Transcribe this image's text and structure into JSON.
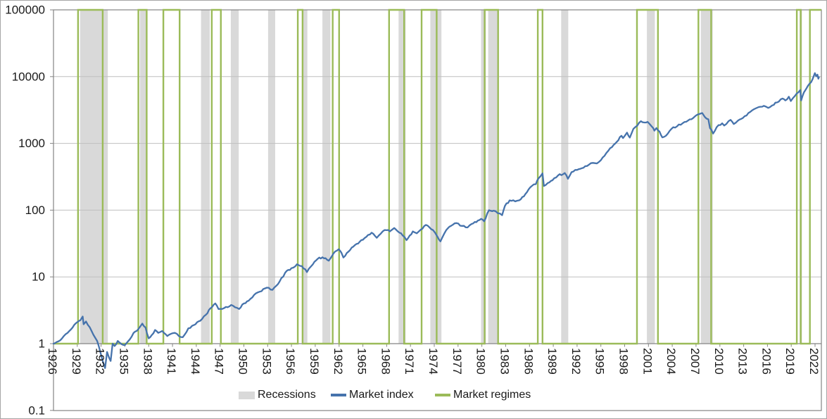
{
  "chart_data": {
    "type": "line",
    "title": "",
    "xlabel": "",
    "ylabel": "",
    "x_axis": {
      "tick_years": [
        1926,
        1929,
        1932,
        1935,
        1938,
        1941,
        1944,
        1947,
        1950,
        1953,
        1956,
        1959,
        1962,
        1965,
        1968,
        1971,
        1974,
        1977,
        1980,
        1983,
        1986,
        1989,
        1992,
        1995,
        1998,
        2001,
        2004,
        2007,
        2010,
        2013,
        2016,
        2019,
        2022
      ],
      "range": [
        1926,
        2022.8
      ],
      "label_rotation": 90
    },
    "y_axis": {
      "scale": "log",
      "tick_labels": [
        "100000",
        "10000",
        "1000",
        "100",
        "10",
        "1",
        "0.1"
      ],
      "tick_values": [
        100000,
        10000,
        1000,
        100,
        10,
        1,
        0.1
      ],
      "range": [
        0.1,
        100000
      ],
      "axis_cross_value": 1
    },
    "legend": [
      {
        "label": "Recessions",
        "swatch": "area",
        "color": "#D9D9D9"
      },
      {
        "label": "Market index",
        "swatch": "line",
        "color": "#4673AC"
      },
      {
        "label": "Market regimes",
        "swatch": "line",
        "color": "#9BBB59"
      }
    ],
    "recessions": {
      "color": "#D9D9D9",
      "periods": [
        [
          1929.35,
          1932.85
        ],
        [
          1936.9,
          1937.7
        ],
        [
          1944.6,
          1945.7
        ],
        [
          1948.35,
          1949.35
        ],
        [
          1953.05,
          1953.95
        ],
        [
          1957.4,
          1958.0
        ],
        [
          1959.9,
          1960.9
        ],
        [
          1969.5,
          1970.4
        ],
        [
          1973.5,
          1974.9
        ],
        [
          1979.9,
          1980.5
        ],
        [
          1980.8,
          1982.1
        ],
        [
          1990.0,
          1990.9
        ],
        [
          2000.8,
          2001.8
        ],
        [
          2007.6,
          2009.1
        ],
        [
          2020.05,
          2020.35
        ]
      ]
    },
    "regimes": {
      "color": "#9BBB59",
      "baseline_value": 1,
      "high_value": 100000,
      "periods": [
        [
          1929.1,
          1932.2
        ],
        [
          1936.7,
          1937.75
        ],
        [
          1939.85,
          1941.9
        ],
        [
          1945.95,
          1947.1
        ],
        [
          1956.8,
          1957.4
        ],
        [
          1961.2,
          1962.0
        ],
        [
          1968.3,
          1970.2
        ],
        [
          1972.4,
          1974.3
        ],
        [
          1980.35,
          1982.05
        ],
        [
          1987.05,
          1987.65
        ],
        [
          1999.55,
          2002.2
        ],
        [
          2007.3,
          2008.9
        ],
        [
          2019.7,
          2020.2
        ],
        [
          2021.35,
          null
        ]
      ]
    },
    "series": [
      {
        "name": "Market index",
        "color": "#4673AC",
        "points": [
          [
            1926.0,
            1.0
          ],
          [
            1926.6,
            1.08
          ],
          [
            1927.3,
            1.3
          ],
          [
            1928.0,
            1.55
          ],
          [
            1928.6,
            1.9
          ],
          [
            1929.0,
            2.1
          ],
          [
            1929.4,
            2.25
          ],
          [
            1929.68,
            2.55
          ],
          [
            1929.8,
            1.95
          ],
          [
            1930.1,
            2.15
          ],
          [
            1930.8,
            1.55
          ],
          [
            1931.5,
            1.1
          ],
          [
            1931.9,
            0.75
          ],
          [
            1932.2,
            0.55
          ],
          [
            1932.5,
            0.43
          ],
          [
            1932.75,
            0.75
          ],
          [
            1933.0,
            0.62
          ],
          [
            1933.2,
            0.55
          ],
          [
            1933.45,
            1.0
          ],
          [
            1933.7,
            0.92
          ],
          [
            1934.1,
            1.1
          ],
          [
            1934.6,
            0.98
          ],
          [
            1935.0,
            0.95
          ],
          [
            1935.6,
            1.15
          ],
          [
            1936.1,
            1.45
          ],
          [
            1936.7,
            1.65
          ],
          [
            1937.2,
            2.0
          ],
          [
            1937.6,
            1.75
          ],
          [
            1938.0,
            1.2
          ],
          [
            1938.4,
            1.35
          ],
          [
            1938.8,
            1.6
          ],
          [
            1939.2,
            1.45
          ],
          [
            1939.7,
            1.55
          ],
          [
            1940.35,
            1.3
          ],
          [
            1940.8,
            1.4
          ],
          [
            1941.3,
            1.45
          ],
          [
            1941.8,
            1.3
          ],
          [
            1942.3,
            1.25
          ],
          [
            1943.0,
            1.7
          ],
          [
            1943.7,
            1.9
          ],
          [
            1944.5,
            2.2
          ],
          [
            1945.2,
            2.7
          ],
          [
            1945.8,
            3.4
          ],
          [
            1946.4,
            4.0
          ],
          [
            1946.8,
            3.3
          ],
          [
            1947.5,
            3.4
          ],
          [
            1948.4,
            3.8
          ],
          [
            1948.9,
            3.5
          ],
          [
            1949.4,
            3.3
          ],
          [
            1950.0,
            4.0
          ],
          [
            1950.6,
            4.4
          ],
          [
            1951.3,
            5.4
          ],
          [
            1952.0,
            6.0
          ],
          [
            1952.9,
            6.9
          ],
          [
            1953.6,
            6.4
          ],
          [
            1954.5,
            8.5
          ],
          [
            1955.2,
            11.5
          ],
          [
            1956.0,
            13.5
          ],
          [
            1956.7,
            15.5
          ],
          [
            1957.3,
            14.5
          ],
          [
            1957.95,
            11.8
          ],
          [
            1958.7,
            15.5
          ],
          [
            1959.5,
            19.5
          ],
          [
            1960.1,
            19.0
          ],
          [
            1960.7,
            17.5
          ],
          [
            1961.3,
            22.5
          ],
          [
            1961.95,
            26.0
          ],
          [
            1962.3,
            23.0
          ],
          [
            1962.55,
            19.5
          ],
          [
            1963.2,
            24.0
          ],
          [
            1964.0,
            30.0
          ],
          [
            1965.0,
            36.0
          ],
          [
            1966.1,
            46.0
          ],
          [
            1966.75,
            38.5
          ],
          [
            1967.5,
            48.0
          ],
          [
            1968.0,
            50.0
          ],
          [
            1968.4,
            48.0
          ],
          [
            1968.95,
            54.0
          ],
          [
            1969.6,
            46.0
          ],
          [
            1970.0,
            42.0
          ],
          [
            1970.5,
            35.5
          ],
          [
            1971.3,
            48.0
          ],
          [
            1971.8,
            45.0
          ],
          [
            1972.3,
            51.0
          ],
          [
            1972.95,
            60.0
          ],
          [
            1973.6,
            52.0
          ],
          [
            1974.1,
            46.0
          ],
          [
            1974.4,
            40.0
          ],
          [
            1974.78,
            34.0
          ],
          [
            1975.5,
            50.0
          ],
          [
            1976.1,
            58.0
          ],
          [
            1976.8,
            64.0
          ],
          [
            1977.5,
            58.0
          ],
          [
            1978.2,
            55.0
          ],
          [
            1978.7,
            62.0
          ],
          [
            1979.3,
            66.0
          ],
          [
            1979.9,
            74.0
          ],
          [
            1980.28,
            68.0
          ],
          [
            1980.9,
            100.0
          ],
          [
            1981.5,
            98.0
          ],
          [
            1982.0,
            90.0
          ],
          [
            1982.55,
            84.0
          ],
          [
            1982.9,
            115.0
          ],
          [
            1983.5,
            140.0
          ],
          [
            1984.2,
            135.0
          ],
          [
            1984.7,
            140.0
          ],
          [
            1985.5,
            175.0
          ],
          [
            1986.3,
            230.0
          ],
          [
            1986.8,
            245.0
          ],
          [
            1987.15,
            300.0
          ],
          [
            1987.65,
            355.0
          ],
          [
            1987.82,
            230.0
          ],
          [
            1988.3,
            255.0
          ],
          [
            1988.9,
            280.0
          ],
          [
            1989.6,
            330.0
          ],
          [
            1990.45,
            360.0
          ],
          [
            1990.85,
            295.0
          ],
          [
            1991.3,
            370.0
          ],
          [
            1992.0,
            400.0
          ],
          [
            1992.8,
            430.0
          ],
          [
            1993.5,
            480.0
          ],
          [
            1994.0,
            510.0
          ],
          [
            1994.5,
            500.0
          ],
          [
            1995.0,
            560.0
          ],
          [
            1995.7,
            720.0
          ],
          [
            1996.4,
            880.0
          ],
          [
            1997.0,
            1050.0
          ],
          [
            1997.6,
            1300.0
          ],
          [
            1997.8,
            1200.0
          ],
          [
            1998.3,
            1450.0
          ],
          [
            1998.65,
            1220.0
          ],
          [
            1999.1,
            1650.0
          ],
          [
            1999.6,
            1850.0
          ],
          [
            2000.05,
            2150.0
          ],
          [
            2000.5,
            2050.0
          ],
          [
            2000.9,
            2100.0
          ],
          [
            2001.4,
            1800.0
          ],
          [
            2001.75,
            1550.0
          ],
          [
            2002.0,
            1700.0
          ],
          [
            2002.4,
            1500.0
          ],
          [
            2002.75,
            1230.0
          ],
          [
            2003.2,
            1300.0
          ],
          [
            2003.9,
            1650.0
          ],
          [
            2004.6,
            1800.0
          ],
          [
            2005.3,
            2000.0
          ],
          [
            2006.0,
            2200.0
          ],
          [
            2006.8,
            2500.0
          ],
          [
            2007.4,
            2750.0
          ],
          [
            2007.78,
            2850.0
          ],
          [
            2008.1,
            2500.0
          ],
          [
            2008.55,
            2300.0
          ],
          [
            2008.75,
            1700.0
          ],
          [
            2009.15,
            1400.0
          ],
          [
            2009.6,
            1750.0
          ],
          [
            2010.3,
            2000.0
          ],
          [
            2010.55,
            1850.0
          ],
          [
            2011.1,
            2150.0
          ],
          [
            2011.35,
            2250.0
          ],
          [
            2011.75,
            1950.0
          ],
          [
            2012.3,
            2200.0
          ],
          [
            2012.9,
            2400.0
          ],
          [
            2013.6,
            2850.0
          ],
          [
            2014.3,
            3250.0
          ],
          [
            2014.9,
            3500.0
          ],
          [
            2015.55,
            3650.0
          ],
          [
            2016.1,
            3400.0
          ],
          [
            2016.6,
            3700.0
          ],
          [
            2017.2,
            4100.0
          ],
          [
            2017.9,
            4700.0
          ],
          [
            2018.25,
            4400.0
          ],
          [
            2018.7,
            5000.0
          ],
          [
            2018.95,
            4300.0
          ],
          [
            2019.5,
            5200.0
          ],
          [
            2019.9,
            5800.0
          ],
          [
            2020.14,
            6300.0
          ],
          [
            2020.25,
            4400.0
          ],
          [
            2020.6,
            5800.0
          ],
          [
            2020.9,
            6600.0
          ],
          [
            2021.3,
            7800.0
          ],
          [
            2021.7,
            9200.0
          ],
          [
            2021.98,
            11300.0
          ],
          [
            2022.15,
            10100.0
          ],
          [
            2022.3,
            10700.0
          ],
          [
            2022.42,
            9300.0
          ],
          [
            2022.5,
            9800.0
          ]
        ]
      }
    ],
    "grid": {
      "horizontal": true,
      "vertical": false
    },
    "legend_position": "bottom-center-inside"
  },
  "colors": {
    "market_index": "#4673AC",
    "market_regimes": "#9BBB59",
    "recession": "#D9D9D9",
    "gridline": "#BFBFBF",
    "axis": "#848484",
    "text": "#191919",
    "background": "#FFFFFF",
    "chart_border": "#A6A6A6"
  }
}
